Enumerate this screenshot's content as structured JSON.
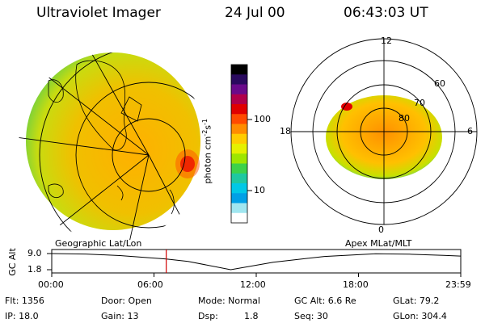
{
  "header": {
    "title": "Ultraviolet Imager",
    "date": "24 Jul 00",
    "time": "06:43:03 UT"
  },
  "maps": {
    "left_label": "Geographic Lat/Lon",
    "right_label": "Apex MLat/MLT",
    "mlt_labels": [
      "12",
      "18",
      "6",
      "0"
    ],
    "mlat_labels": [
      "60",
      "70",
      "80"
    ]
  },
  "colorbar": {
    "label": "photon cm",
    "label_sup": "-2",
    "label_s": "s",
    "label_sup2": "-1",
    "ticks": [
      "100",
      "10"
    ],
    "colors": [
      "#000000",
      "#2a0a5e",
      "#6a0a8a",
      "#b0004a",
      "#e00000",
      "#ff4a00",
      "#ff8c00",
      "#ffcc00",
      "#e6f000",
      "#9ee600",
      "#3cd24a",
      "#1ec8a0",
      "#00c8e6",
      "#00a0e6",
      "#a0e6f0",
      "#ffffff"
    ]
  },
  "alt_chart": {
    "ylabel": "GC Alt",
    "y_ticks": [
      "9.0",
      "1.8"
    ],
    "x_ticks": [
      "00:00",
      "06:00",
      "12:00",
      "18:00",
      "23:59"
    ]
  },
  "chart_data": {
    "type": "line",
    "title": "",
    "xlabel": "",
    "ylabel": "GC Alt",
    "x": [
      0.0,
      2.0,
      4.0,
      6.72,
      8.0,
      10.5,
      13.0,
      16.0,
      19.0,
      21.0,
      23.0,
      23.98
    ],
    "y": [
      9.0,
      8.8,
      8.1,
      6.6,
      5.5,
      1.8,
      5.1,
      7.7,
      8.9,
      8.7,
      8.2,
      7.9
    ],
    "current_time_hours": 6.72,
    "xlim": [
      0,
      24
    ],
    "ylim": [
      1.8,
      9.0
    ]
  },
  "footer": {
    "flt": "Flt: 1356",
    "ip": "IP: 18.0",
    "door": "Door: Open",
    "gain": "Gain: 13",
    "mode": "Mode: Normal",
    "dsp_label": "Dsp:",
    "dsp_value": "1.8",
    "gcalt": "GC Alt: 6.6 Re",
    "seq": "Seq: 30",
    "glat": "GLat:  79.2",
    "glon": "GLon: 304.4"
  }
}
